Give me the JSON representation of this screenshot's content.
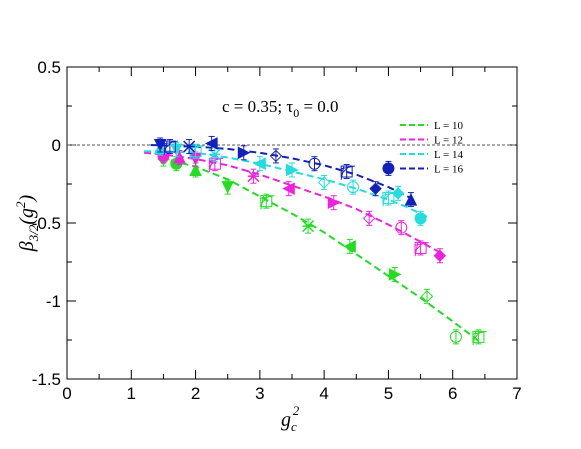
{
  "chart_data": {
    "type": "scatter",
    "annotation": "c = 0.35; τ0 = 0.0",
    "xlim": [
      0,
      7
    ],
    "ylim": [
      -1.5,
      0.5
    ],
    "x_ticks": [
      0,
      1,
      2,
      3,
      4,
      5,
      6,
      7
    ],
    "x_tick_labels": [
      "0",
      "1",
      "2",
      "3",
      "4",
      "5",
      "6",
      "7"
    ],
    "y_ticks": [
      -1.5,
      -1,
      -0.5,
      0,
      0.5
    ],
    "y_tick_labels": [
      "-1.5",
      "-1",
      "-0.5",
      "0",
      "0.5"
    ],
    "reference_line_y": 0,
    "legend_position": "top-right",
    "series": [
      {
        "name": "L = 10",
        "color": "#22dd22",
        "points": [
          [
            1.5,
            -0.09
          ],
          [
            1.7,
            -0.12
          ],
          [
            2.0,
            -0.16
          ],
          [
            2.5,
            -0.27
          ],
          [
            3.1,
            -0.36
          ],
          [
            3.75,
            -0.52
          ],
          [
            4.4,
            -0.65
          ],
          [
            5.1,
            -0.83
          ],
          [
            5.6,
            -0.97
          ],
          [
            6.05,
            -1.23
          ],
          [
            6.4,
            -1.23
          ]
        ],
        "fit": [
          [
            1.45,
            -0.08
          ],
          [
            2.0,
            -0.14
          ],
          [
            2.5,
            -0.22
          ],
          [
            3.0,
            -0.33
          ],
          [
            3.5,
            -0.44
          ],
          [
            4.0,
            -0.56
          ],
          [
            4.5,
            -0.7
          ],
          [
            5.0,
            -0.84
          ],
          [
            5.5,
            -0.98
          ],
          [
            6.0,
            -1.13
          ],
          [
            6.45,
            -1.27
          ]
        ]
      },
      {
        "name": "L = 12",
        "color": "#ee22dd",
        "points": [
          [
            1.5,
            -0.07
          ],
          [
            1.75,
            -0.08
          ],
          [
            2.0,
            -0.09
          ],
          [
            2.3,
            -0.12
          ],
          [
            2.9,
            -0.2
          ],
          [
            3.45,
            -0.28
          ],
          [
            4.15,
            -0.37
          ],
          [
            4.7,
            -0.47
          ],
          [
            5.2,
            -0.53
          ],
          [
            5.5,
            -0.66
          ],
          [
            5.8,
            -0.71
          ]
        ],
        "fit": [
          [
            1.2,
            -0.05
          ],
          [
            1.5,
            -0.06
          ],
          [
            2.0,
            -0.09
          ],
          [
            2.5,
            -0.13
          ],
          [
            3.0,
            -0.19
          ],
          [
            3.5,
            -0.26
          ],
          [
            4.0,
            -0.33
          ],
          [
            4.5,
            -0.41
          ],
          [
            5.0,
            -0.51
          ],
          [
            5.5,
            -0.62
          ],
          [
            5.85,
            -0.7
          ]
        ]
      },
      {
        "name": "L = 14",
        "color": "#22dddd",
        "points": [
          [
            1.45,
            -0.02
          ],
          [
            1.7,
            -0.03
          ],
          [
            2.0,
            -0.04
          ],
          [
            2.3,
            -0.06
          ],
          [
            3.0,
            -0.12
          ],
          [
            3.5,
            -0.16
          ],
          [
            4.0,
            -0.24
          ],
          [
            4.45,
            -0.27
          ],
          [
            5.0,
            -0.34
          ],
          [
            5.15,
            -0.31
          ],
          [
            5.5,
            -0.47
          ]
        ],
        "fit": [
          [
            1.2,
            -0.04
          ],
          [
            1.5,
            -0.04
          ],
          [
            2.0,
            -0.05
          ],
          [
            2.5,
            -0.08
          ],
          [
            3.0,
            -0.12
          ],
          [
            3.5,
            -0.17
          ],
          [
            4.0,
            -0.22
          ],
          [
            4.5,
            -0.28
          ],
          [
            5.0,
            -0.35
          ],
          [
            5.3,
            -0.4
          ],
          [
            5.6,
            -0.46
          ]
        ]
      },
      {
        "name": "L = 16",
        "color": "#1122bb",
        "points": [
          [
            1.45,
            0.0
          ],
          [
            1.6,
            -0.01
          ],
          [
            1.9,
            -0.01
          ],
          [
            2.25,
            0.01
          ],
          [
            2.75,
            -0.05
          ],
          [
            3.25,
            -0.07
          ],
          [
            3.85,
            -0.12
          ],
          [
            4.35,
            -0.17
          ],
          [
            4.8,
            -0.28
          ],
          [
            5.0,
            -0.15
          ],
          [
            5.35,
            -0.35
          ]
        ],
        "fit": [
          [
            1.3,
            0.0
          ],
          [
            1.5,
            -0.003
          ],
          [
            2.0,
            -0.01
          ],
          [
            2.5,
            -0.025
          ],
          [
            3.0,
            -0.05
          ],
          [
            3.5,
            -0.085
          ],
          [
            4.0,
            -0.13
          ],
          [
            4.5,
            -0.19
          ],
          [
            5.0,
            -0.27
          ],
          [
            5.35,
            -0.34
          ]
        ]
      }
    ]
  }
}
